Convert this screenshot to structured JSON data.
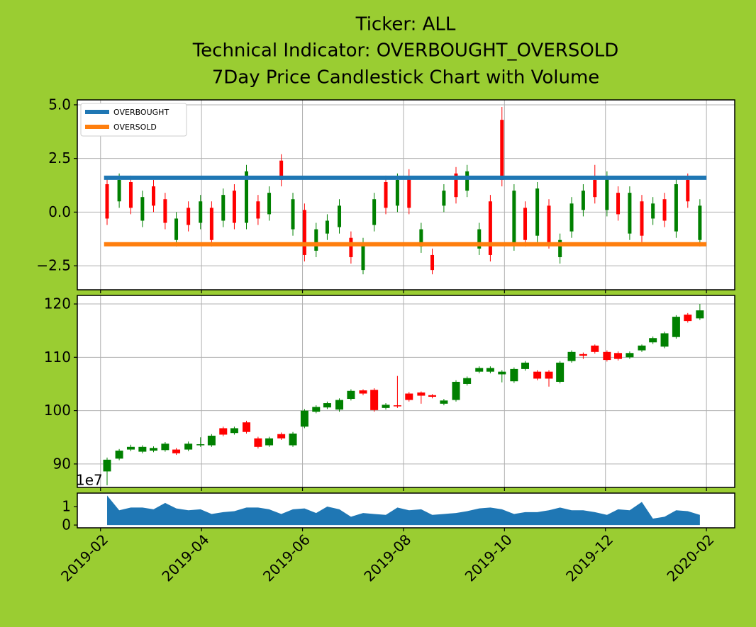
{
  "chart_data": [
    {
      "type": "candlestick",
      "title": [
        "Ticker: ALL",
        "Technical Indicator: OVERBOUGHT_OVERSOLD",
        "7Day Price Candlestick Chart with Volume"
      ],
      "x": [
        0.13,
        0.37,
        0.6,
        0.83,
        1.05,
        1.28,
        1.5,
        1.74,
        1.98,
        2.2,
        2.43,
        2.65,
        2.89,
        3.12,
        3.34,
        3.58,
        3.81,
        4.04,
        4.27,
        4.49,
        4.73,
        4.96,
        5.2,
        5.42,
        5.65,
        5.88,
        6.11,
        6.35,
        6.57,
        6.8,
        7.04,
        7.26,
        7.5,
        7.72,
        7.95,
        8.19,
        8.41,
        8.65,
        8.88,
        9.1,
        9.33,
        9.56,
        9.79,
        10.03,
        10.25,
        10.48,
        10.72,
        10.94,
        11.17,
        11.4,
        11.63,
        11.87
      ],
      "open": [
        1.3,
        0.5,
        1.4,
        -0.4,
        1.2,
        0.6,
        -1.3,
        0.2,
        -0.5,
        0.2,
        -0.4,
        1.0,
        -0.5,
        0.5,
        -0.1,
        2.4,
        -0.8,
        0.1,
        -1.8,
        -1.0,
        -0.7,
        -1.2,
        -2.7,
        -0.6,
        1.4,
        0.3,
        1.6,
        -1.6,
        -2.0,
        0.3,
        1.8,
        1.0,
        -1.7,
        0.5,
        4.3,
        -1.5,
        0.2,
        -1.1,
        0.3,
        -2.1,
        -0.9,
        0.1,
        1.5,
        0.1,
        0.9,
        -1.0,
        0.5,
        -0.3,
        0.6,
        -0.9,
        1.5,
        -1.3
      ],
      "high": [
        1.6,
        1.8,
        1.7,
        1.0,
        1.5,
        0.9,
        0,
        0.5,
        0.8,
        0.5,
        1.1,
        1.3,
        2.2,
        0.8,
        1.2,
        2.7,
        0.9,
        0.4,
        -0.5,
        -0.1,
        0.6,
        -0.9,
        -1.2,
        0.9,
        1.7,
        1.8,
        2.0,
        -0.5,
        -1.7,
        1.3,
        2.1,
        2.2,
        -0.5,
        0.8,
        4.9,
        1.3,
        0.5,
        1.4,
        0.6,
        -1.0,
        0.7,
        1.3,
        2.2,
        1.9,
        1.2,
        1.2,
        0.8,
        0.7,
        0.9,
        1.6,
        1.8,
        0.6
      ],
      "low": [
        -0.6,
        0.2,
        -0.1,
        -0.7,
        0,
        -0.8,
        -1.6,
        -0.9,
        -0.8,
        -1.6,
        -0.7,
        -0.8,
        -0.8,
        -0.6,
        -0.4,
        1.2,
        -1.1,
        -2.3,
        -2.1,
        -1.3,
        -1.0,
        -2.4,
        -2.9,
        -0.9,
        -0.1,
        0,
        -0.1,
        -1.9,
        -2.9,
        0,
        0.4,
        0.7,
        -2.0,
        -2.3,
        1.2,
        -1.8,
        -1.6,
        -1.4,
        -1.7,
        -2.4,
        -1.2,
        -0.2,
        0.4,
        -0.2,
        -0.4,
        -1.3,
        -1.4,
        -0.6,
        -0.7,
        -1.2,
        0.2,
        -1.6
      ],
      "close": [
        -0.3,
        1.5,
        0.2,
        0.7,
        0.3,
        -0.5,
        -0.3,
        -0.6,
        0.5,
        -1.3,
        0.8,
        -0.5,
        1.9,
        -0.3,
        0.9,
        1.5,
        0.6,
        -2.0,
        -0.8,
        -0.4,
        0.3,
        -2.1,
        -1.5,
        0.6,
        0.2,
        1.5,
        0.2,
        -0.8,
        -2.7,
        1.0,
        0.7,
        1.9,
        -0.8,
        -2.0,
        1.5,
        1.0,
        -1.3,
        1.1,
        -1.4,
        -1.3,
        0.4,
        1.0,
        0.7,
        1.6,
        -0.1,
        0.9,
        -1.1,
        0.4,
        -0.4,
        1.3,
        0.5,
        0.3
      ],
      "up_color": "green",
      "down_color": "red",
      "lines": [
        {
          "name": "OVERBOUGHT",
          "color": "#1f77b4",
          "x": [
            0.07,
            12.0
          ],
          "values": [
            1.6,
            1.6
          ]
        },
        {
          "name": "OVERSOLD",
          "color": "#ff7f0e",
          "x": [
            0.07,
            12.0
          ],
          "values": [
            -1.5,
            -1.5
          ]
        }
      ],
      "legend": "upper left",
      "xlim": [
        -0.46,
        12.56
      ],
      "xticks": [
        0,
        2,
        4,
        6,
        8,
        10,
        12
      ],
      "ylim": [
        -3.62,
        5.23
      ],
      "yticks": [
        {
          "value": -2.5,
          "label": "−2.5"
        },
        {
          "value": 0,
          "label": "0.0"
        },
        {
          "value": 2.5,
          "label": "2.5"
        },
        {
          "value": 5,
          "label": "5.0"
        }
      ],
      "grid": true
    },
    {
      "type": "candlestick",
      "x": [
        0.13,
        0.37,
        0.6,
        0.83,
        1.05,
        1.28,
        1.5,
        1.74,
        1.98,
        2.2,
        2.43,
        2.65,
        2.89,
        3.12,
        3.34,
        3.58,
        3.81,
        4.04,
        4.27,
        4.49,
        4.73,
        4.96,
        5.2,
        5.42,
        5.65,
        5.88,
        6.11,
        6.35,
        6.57,
        6.8,
        7.04,
        7.26,
        7.5,
        7.72,
        7.95,
        8.19,
        8.41,
        8.65,
        8.88,
        9.1,
        9.33,
        9.56,
        9.79,
        10.03,
        10.25,
        10.48,
        10.72,
        10.94,
        11.17,
        11.4,
        11.63,
        11.87
      ],
      "open": [
        88.6,
        91,
        92.7,
        92.3,
        92.5,
        92.6,
        92.7,
        92.7,
        93.5,
        93.5,
        96.7,
        95.8,
        97.8,
        94.8,
        93.5,
        95.6,
        93.5,
        97,
        99.8,
        100.6,
        100.2,
        102.2,
        103.8,
        103.9,
        100.5,
        101,
        103.2,
        103.4,
        102.9,
        101.3,
        102,
        105,
        107.3,
        107.3,
        106.8,
        105.5,
        107.8,
        107.3,
        107.3,
        105.4,
        109.3,
        110.6,
        112.2,
        111,
        110.8,
        110,
        111.3,
        112.8,
        112,
        113.8,
        118,
        117.3
      ],
      "high": [
        91.2,
        92.8,
        93.6,
        93.5,
        93.3,
        94.1,
        93,
        94.2,
        95,
        95.6,
        97,
        97,
        98.1,
        95.1,
        95.1,
        95.9,
        96,
        100.3,
        101,
        101.7,
        102.3,
        104,
        104,
        104.2,
        101.4,
        106.5,
        103.5,
        103.6,
        103.1,
        102.2,
        105.7,
        106.4,
        108.3,
        108.3,
        107.6,
        108.1,
        109.3,
        107.6,
        107.6,
        109.3,
        111.3,
        110.9,
        112.4,
        111.3,
        111.1,
        111.1,
        112.4,
        113.9,
        114.8,
        117.9,
        118.3,
        120
      ],
      "low": [
        86,
        90.7,
        92.4,
        92,
        92.2,
        92.3,
        91.7,
        92.4,
        93.2,
        93.2,
        95.2,
        95.5,
        95.7,
        92.9,
        93.2,
        94.5,
        93.2,
        96.7,
        99.5,
        100.3,
        99.8,
        101.9,
        102.9,
        99.8,
        100.2,
        100.5,
        101.7,
        101.3,
        102.3,
        101,
        101.7,
        104.7,
        107,
        107,
        105.3,
        105.2,
        107.5,
        105.7,
        104.5,
        105.1,
        109,
        109.7,
        110.7,
        109.2,
        109.4,
        109.7,
        111,
        112.5,
        111.7,
        113.5,
        116.5,
        117
      ],
      "close": [
        90.8,
        92.5,
        93.2,
        93.2,
        93,
        93.8,
        92,
        93.8,
        93.7,
        95.3,
        95.5,
        96.7,
        96,
        93.2,
        94.8,
        94.8,
        95.7,
        100,
        100.7,
        101.4,
        102,
        103.7,
        103.2,
        100.1,
        101.1,
        100.8,
        102,
        102.8,
        102.6,
        101.9,
        105.4,
        106.1,
        108,
        108,
        107.3,
        107.8,
        109,
        106,
        106,
        109,
        111,
        110.3,
        111,
        109.5,
        109.7,
        110.8,
        112.2,
        113.6,
        114.5,
        117.6,
        116.8,
        118.8
      ],
      "up_color": "green",
      "down_color": "red",
      "xlim": [
        -0.46,
        12.56
      ],
      "xticks": [
        0,
        2,
        4,
        6,
        8,
        10,
        12
      ],
      "ylim": [
        85.6,
        121.6
      ],
      "yticks": [
        90,
        100,
        110,
        120
      ],
      "grid": true
    },
    {
      "type": "area",
      "x": [
        0.13,
        0.37,
        0.6,
        0.83,
        1.05,
        1.28,
        1.5,
        1.74,
        1.98,
        2.2,
        2.43,
        2.65,
        2.89,
        3.12,
        3.34,
        3.58,
        3.81,
        4.04,
        4.27,
        4.49,
        4.73,
        4.96,
        5.2,
        5.42,
        5.65,
        5.88,
        6.11,
        6.35,
        6.57,
        6.8,
        7.04,
        7.26,
        7.5,
        7.72,
        7.95,
        8.19,
        8.41,
        8.65,
        8.88,
        9.1,
        9.33,
        9.56,
        9.79,
        10.03,
        10.25,
        10.48,
        10.72,
        10.94,
        11.17,
        11.4,
        11.63,
        11.87
      ],
      "values": [
        1.6,
        0.8,
        0.95,
        0.95,
        0.85,
        1.2,
        0.9,
        0.8,
        0.85,
        0.6,
        0.7,
        0.75,
        0.95,
        0.95,
        0.85,
        0.6,
        0.85,
        0.9,
        0.65,
        1.0,
        0.85,
        0.45,
        0.65,
        0.6,
        0.55,
        0.95,
        0.8,
        0.85,
        0.55,
        0.6,
        0.65,
        0.75,
        0.9,
        0.95,
        0.85,
        0.6,
        0.7,
        0.7,
        0.8,
        0.95,
        0.8,
        0.8,
        0.7,
        0.55,
        0.85,
        0.8,
        1.25,
        0.35,
        0.45,
        0.8,
        0.75,
        0.55
      ],
      "color": "#1f77b4",
      "y_offset_label": "1e7",
      "xlim": [
        -0.46,
        12.56
      ],
      "xticks": [
        {
          "value": 0,
          "label": "2019-02"
        },
        {
          "value": 2,
          "label": "2019-04"
        },
        {
          "value": 4,
          "label": "2019-06"
        },
        {
          "value": 6,
          "label": "2019-08"
        },
        {
          "value": 8,
          "label": "2019-10"
        },
        {
          "value": 10,
          "label": "2019-12"
        },
        {
          "value": 12,
          "label": "2020-02"
        }
      ],
      "ylim": [
        -0.15,
        1.73
      ],
      "yticks": [
        0,
        1
      ],
      "grid": false
    }
  ]
}
